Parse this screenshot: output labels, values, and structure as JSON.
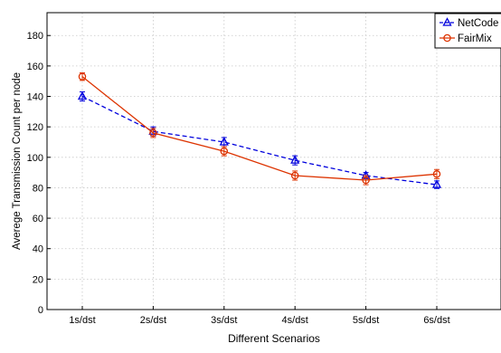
{
  "chart_data": {
    "type": "line",
    "title": "",
    "xlabel": "Different Scenarios",
    "ylabel": "Averege Transmission Count per node",
    "categories": [
      "1s/dst",
      "2s/dst",
      "3s/dst",
      "4s/dst",
      "5s/dst",
      "6s/dst"
    ],
    "yticks": [
      0,
      20,
      40,
      60,
      80,
      100,
      120,
      140,
      160,
      180
    ],
    "ylim": [
      0,
      195
    ],
    "grid": true,
    "legend_position": "top-right",
    "series": [
      {
        "name": "NetCode",
        "color": "#0000dd",
        "line_style": "dashed",
        "marker": "triangle",
        "values": [
          140,
          117,
          110,
          98,
          88,
          82
        ],
        "error": [
          3,
          3,
          3,
          3,
          2,
          2.5
        ]
      },
      {
        "name": "FairMix",
        "color": "#dd3300",
        "line_style": "solid",
        "marker": "circle",
        "values": [
          153,
          116,
          104,
          88,
          85,
          89
        ],
        "error": [
          2.5,
          3,
          3,
          3,
          3,
          3
        ]
      }
    ]
  }
}
